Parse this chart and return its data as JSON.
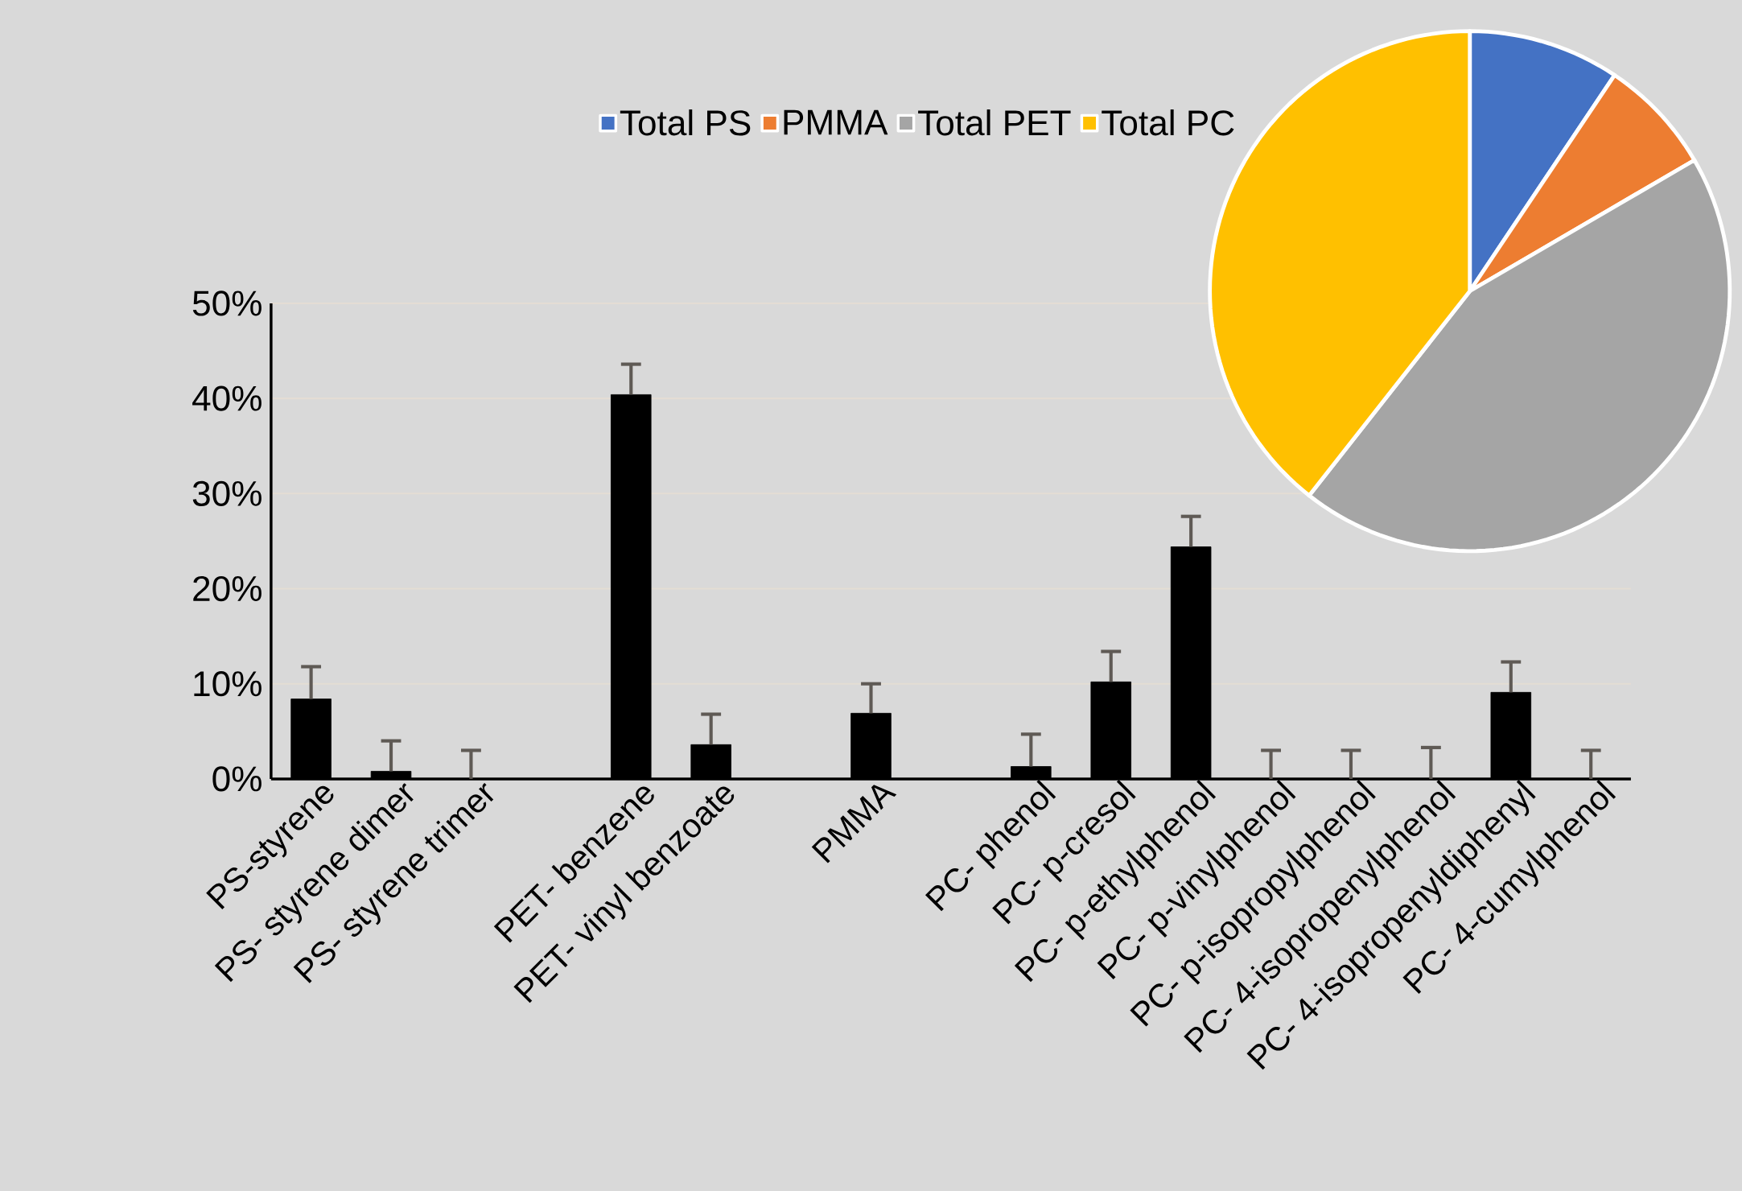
{
  "chart_data": [
    {
      "type": "bar",
      "categories": [
        "PS-styrene",
        "PS- styrene dimer",
        "PS- styrene trimer",
        null,
        "PET- benzene",
        "PET- vinyl benzoate",
        null,
        "PMMA",
        null,
        "PC- phenol",
        "PC- p-cresol",
        "PC- p-ethylphenol",
        "PC- p-vinylphenol",
        "PC- p-isopropylphenol",
        "PC- 4-isopropenylphenol",
        "PC- 4-isopropenyldiphenyl",
        "PC- 4-cumylphenol"
      ],
      "values": [
        8.4,
        0.8,
        0,
        null,
        40.4,
        3.6,
        null,
        6.9,
        null,
        1.3,
        10.2,
        24.4,
        0,
        0,
        0,
        9.1,
        0
      ],
      "errors": [
        [
          8.4,
          11.8
        ],
        [
          0.8,
          4.0
        ],
        [
          0,
          3.0
        ],
        null,
        [
          40.4,
          43.6
        ],
        [
          3.6,
          6.8
        ],
        null,
        [
          6.9,
          10.0
        ],
        null,
        [
          1.3,
          4.7
        ],
        [
          10.2,
          13.4
        ],
        [
          24.4,
          27.6
        ],
        [
          0,
          3.0
        ],
        [
          0,
          3.0
        ],
        [
          0,
          3.3
        ],
        [
          9.1,
          12.3
        ],
        [
          0,
          3.0
        ]
      ],
      "color": "#000000",
      "ylim": [
        0,
        50
      ],
      "yticks": [
        {
          "value": 0,
          "label": "0%"
        },
        {
          "value": 10,
          "label": "10%"
        },
        {
          "value": 20,
          "label": "20%"
        },
        {
          "value": 30,
          "label": "30%"
        },
        {
          "value": 40,
          "label": "40%"
        },
        {
          "value": 50,
          "label": "50%"
        }
      ],
      "grid": "y"
    },
    {
      "type": "pie",
      "categories": [
        "Total PS",
        "PMMA",
        "Total PET",
        "Total PC"
      ],
      "values": [
        9.4,
        7.2,
        44.0,
        39.4
      ],
      "colors": [
        "#4472c4",
        "#ed7d31",
        "#a5a5a5",
        "#ffc000"
      ],
      "legend": "top left"
    }
  ]
}
